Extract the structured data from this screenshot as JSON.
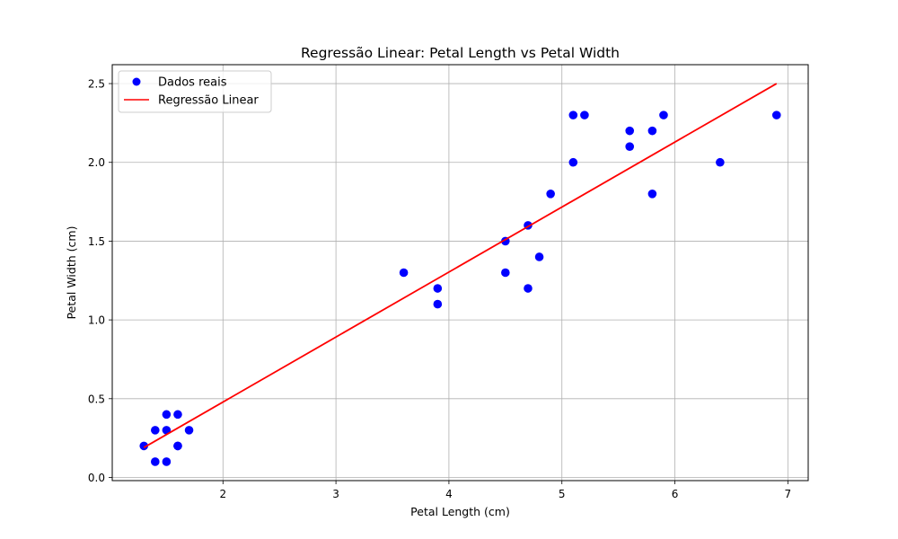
{
  "chart_data": {
    "type": "scatter",
    "title": "Regressão Linear: Petal Length vs Petal Width",
    "xlabel": "Petal Length (cm)",
    "ylabel": "Petal Width (cm)",
    "xlim": [
      1.02,
      7.18
    ],
    "ylim": [
      -0.02,
      2.62
    ],
    "xticks": [
      2,
      3,
      4,
      5,
      6,
      7
    ],
    "yticks": [
      0.0,
      0.5,
      1.0,
      1.5,
      2.0,
      2.5
    ],
    "xtick_labels": [
      "2",
      "3",
      "4",
      "5",
      "6",
      "7"
    ],
    "ytick_labels": [
      "0.0",
      "0.5",
      "1.0",
      "1.5",
      "2.0",
      "2.5"
    ],
    "grid": true,
    "legend_position": "top-left",
    "series": [
      {
        "name": "Dados reais",
        "kind": "scatter",
        "color": "#0000ff",
        "points": [
          [
            1.3,
            0.2
          ],
          [
            1.4,
            0.3
          ],
          [
            1.4,
            0.1
          ],
          [
            1.5,
            0.4
          ],
          [
            1.5,
            0.3
          ],
          [
            1.5,
            0.1
          ],
          [
            1.6,
            0.4
          ],
          [
            1.6,
            0.2
          ],
          [
            1.6,
            0.2
          ],
          [
            1.7,
            0.3
          ],
          [
            3.6,
            1.3
          ],
          [
            3.9,
            1.2
          ],
          [
            3.9,
            1.1
          ],
          [
            4.5,
            1.5
          ],
          [
            4.5,
            1.3
          ],
          [
            4.7,
            1.6
          ],
          [
            4.7,
            1.2
          ],
          [
            4.8,
            1.4
          ],
          [
            4.9,
            1.8
          ],
          [
            5.1,
            2.3
          ],
          [
            5.1,
            2.0
          ],
          [
            5.2,
            2.3
          ],
          [
            5.6,
            2.2
          ],
          [
            5.6,
            2.1
          ],
          [
            5.8,
            2.2
          ],
          [
            5.8,
            1.8
          ],
          [
            5.9,
            2.3
          ],
          [
            6.4,
            2.0
          ],
          [
            6.9,
            2.3
          ]
        ]
      },
      {
        "name": "Regressão Linear",
        "kind": "line",
        "color": "#ff0000",
        "points": [
          [
            1.3,
            0.19
          ],
          [
            6.9,
            2.5
          ]
        ]
      }
    ]
  }
}
